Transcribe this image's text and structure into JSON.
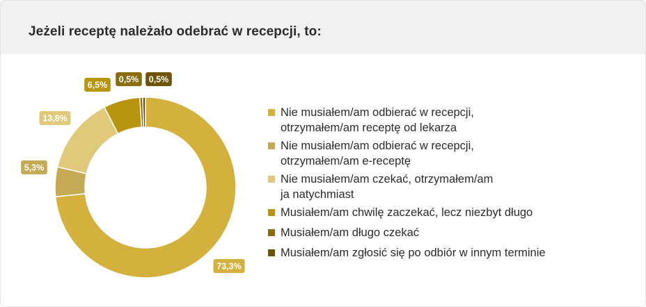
{
  "title": "Jeżeli receptę należało odebrać w recepcji, to:",
  "chart_data": {
    "type": "donut",
    "title": "Jeżeli receptę należało odebrać w recepcji, to:",
    "slices": [
      {
        "label": "Nie musiałem/am odbierać w recepcji, otrzymałem/am receptę od lekarza",
        "lines": [
          "Nie musiałem/am odbierać w recepcji,",
          "otrzymałem/am receptę od lekarza"
        ],
        "value": 73.3,
        "value_label": "73,3%",
        "color": "#d4b13d"
      },
      {
        "label": "Nie musiałem/am odbierać w recepcji, otrzymałem/am e-receptę",
        "lines": [
          "Nie musiałem/am odbierać w recepcji,",
          "otrzymałem/am e-receptę"
        ],
        "value": 5.3,
        "value_label": "5,3%",
        "color": "#c6aa53"
      },
      {
        "label": "Nie musiałem/am czekać, otrzymałem/am ja natychmiast",
        "lines": [
          "Nie musiałem/am czekać, otrzymałem/am",
          "ja natychmiast"
        ],
        "value": 13.8,
        "value_label": "13,8%",
        "color": "#e0c97a"
      },
      {
        "label": "Musiałem/am chwilę zaczekać, lecz niezbyt długo",
        "lines": [
          "Musiałem/am chwilę zaczekać, lecz niezbyt długo"
        ],
        "value": 6.5,
        "value_label": "6,5%",
        "color": "#b8950f"
      },
      {
        "label": "Musiałem/am długo czekać",
        "lines": [
          "Musiałem/am długo czekać"
        ],
        "value": 0.5,
        "value_label": "0,5%",
        "color": "#8a6d12"
      },
      {
        "label": "Musiałem/am zgłosić się po odbiór w innym terminie",
        "lines": [
          "Musiałem/am zgłosić się po odbiór w innym terminie"
        ],
        "value": 0.5,
        "value_label": "0,5%",
        "color": "#6e540b"
      }
    ],
    "legend_position": "right"
  }
}
